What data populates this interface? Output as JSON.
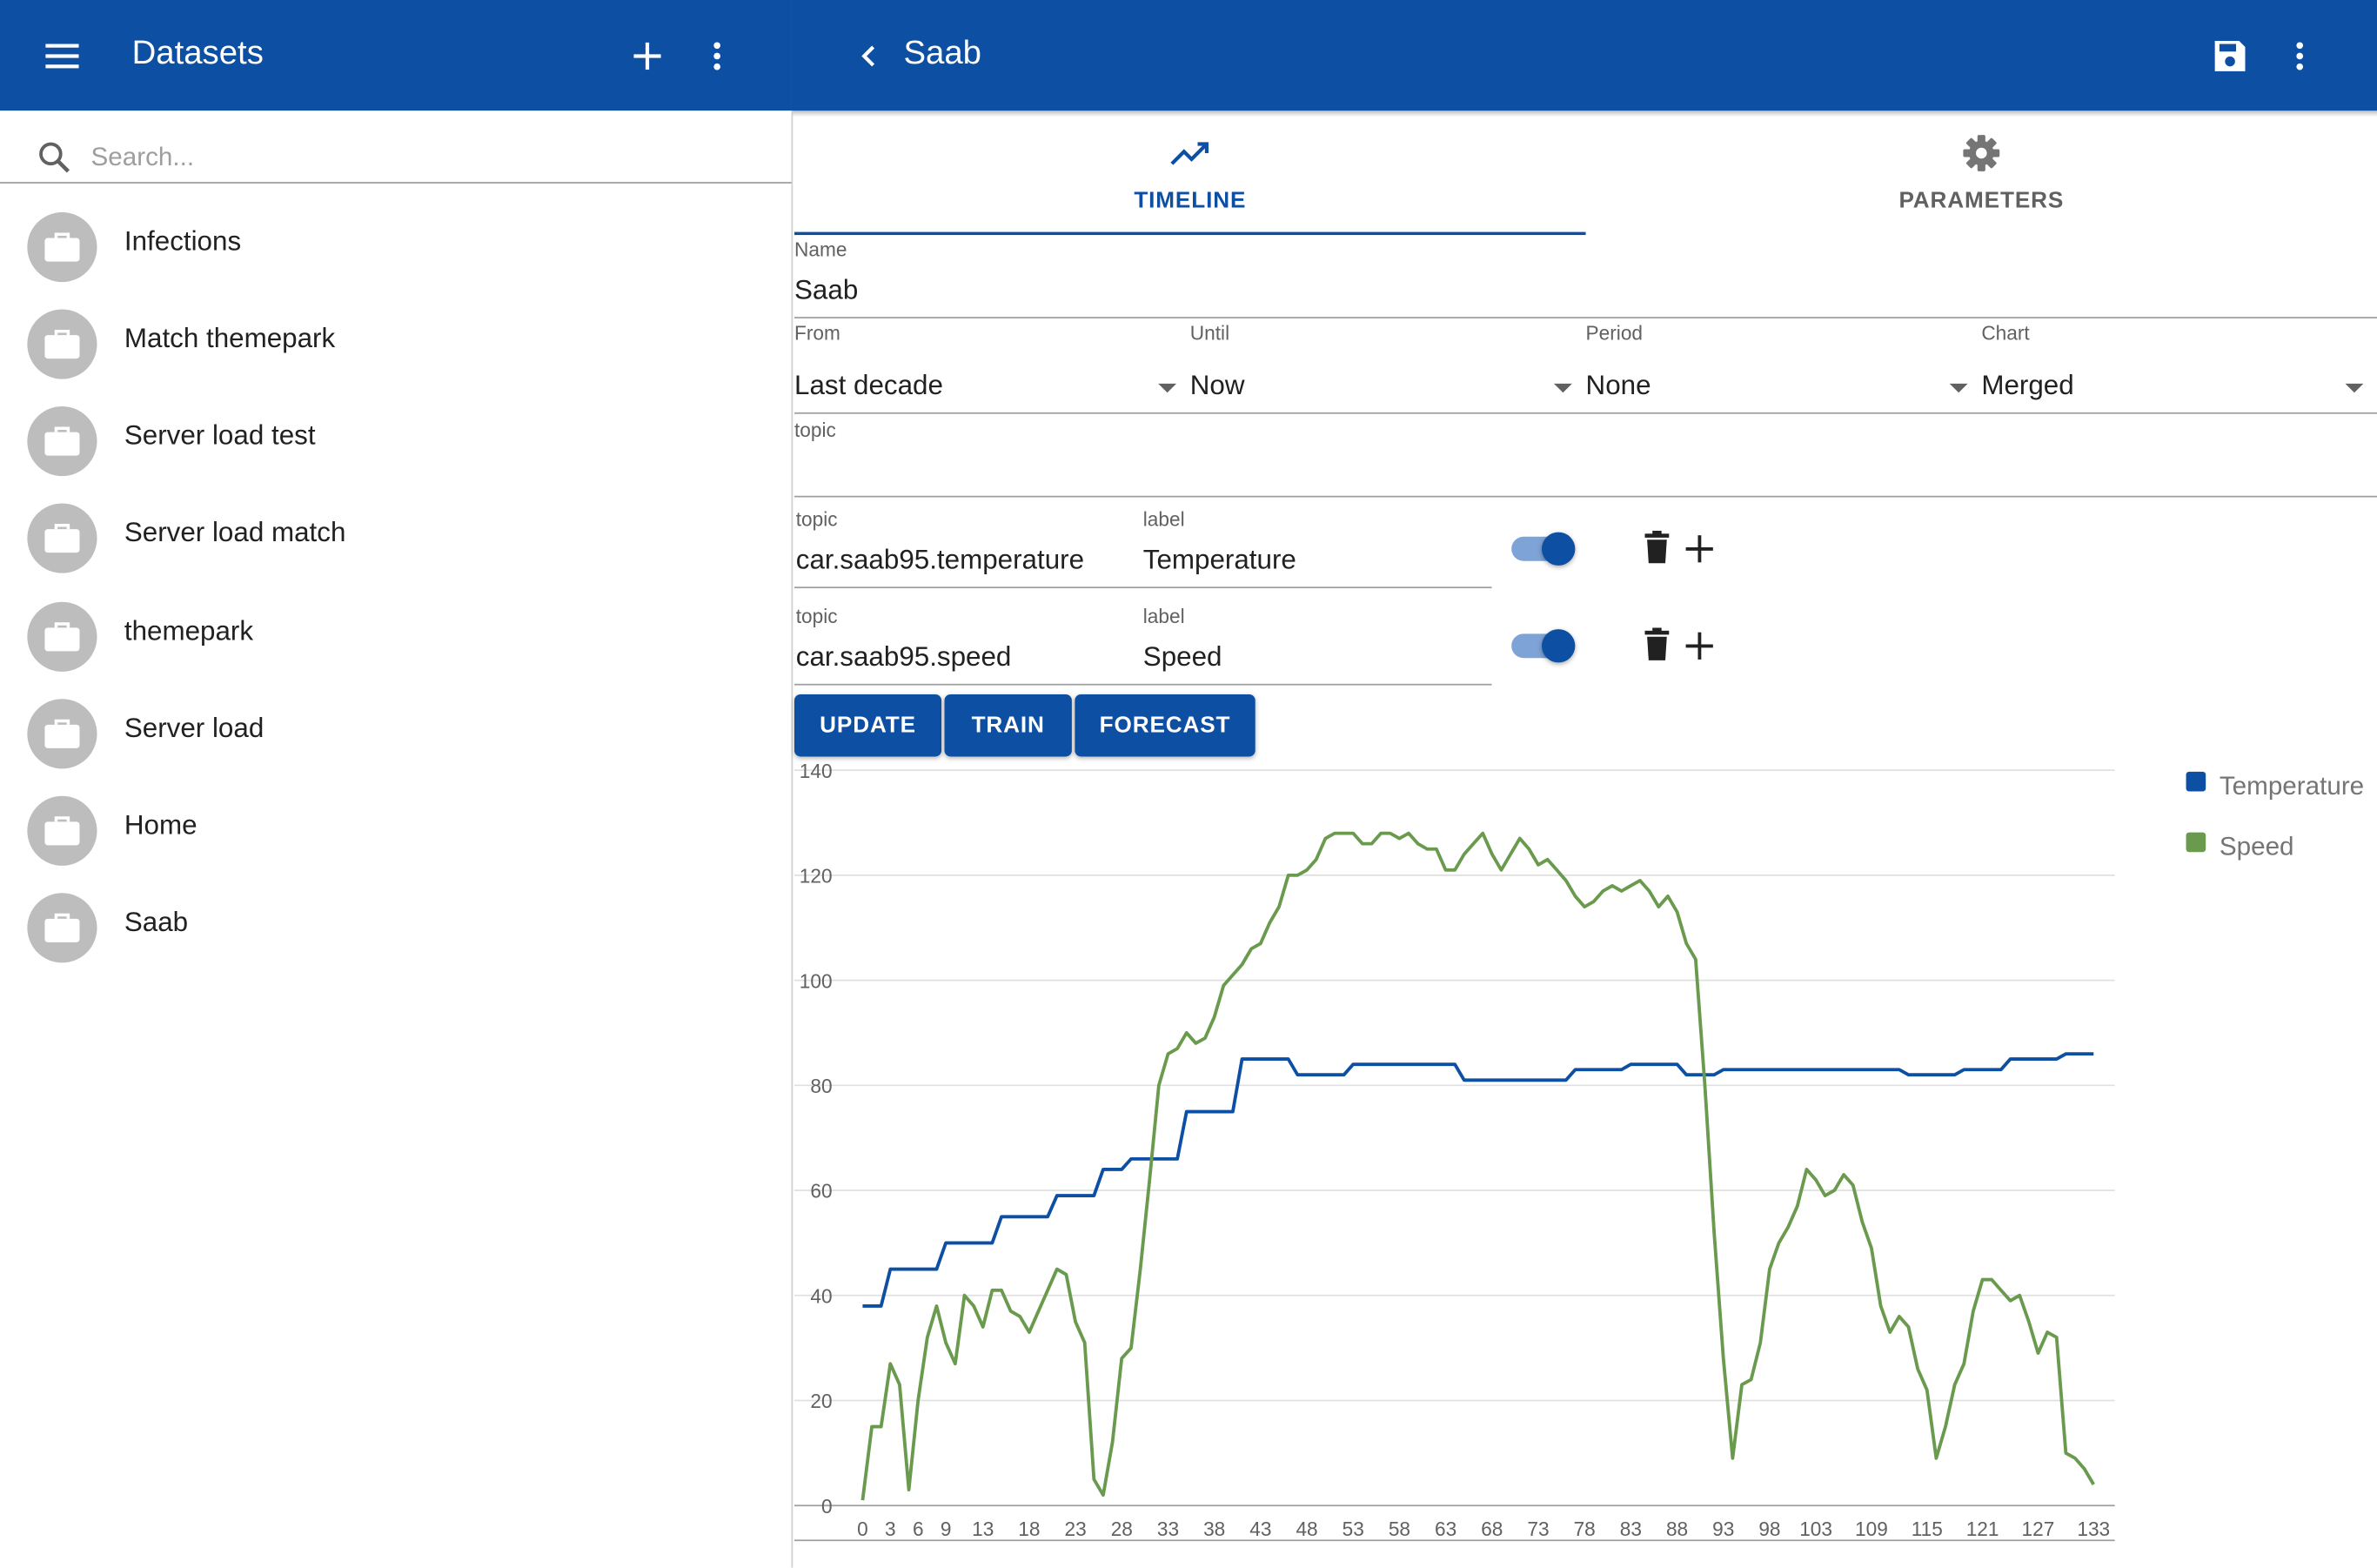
{
  "sidebar_header": {
    "title": "Datasets",
    "menu_icon": "menu-icon",
    "add_icon": "plus-icon",
    "more_icon": "more-vertical-icon"
  },
  "search": {
    "placeholder": "Search...",
    "value": ""
  },
  "datasets": [
    {
      "label": "Infections"
    },
    {
      "label": "Match themepark"
    },
    {
      "label": "Server load test"
    },
    {
      "label": "Server load match"
    },
    {
      "label": "themepark"
    },
    {
      "label": "Server load"
    },
    {
      "label": "Home"
    },
    {
      "label": "Saab"
    }
  ],
  "main_header": {
    "title": "Saab",
    "back_icon": "chevron-left-icon",
    "save_icon": "save-icon",
    "more_icon": "more-vertical-icon"
  },
  "tabs": [
    {
      "label": "TIMELINE",
      "icon": "trending-up-icon",
      "active": true
    },
    {
      "label": "PARAMETERS",
      "icon": "gear-icon",
      "active": false
    }
  ],
  "form": {
    "name": {
      "label": "Name",
      "value": "Saab"
    },
    "from": {
      "label": "From",
      "value": "Last decade"
    },
    "until": {
      "label": "Until",
      "value": "Now"
    },
    "period": {
      "label": "Period",
      "value": "None"
    },
    "chart": {
      "label": "Chart",
      "value": "Merged"
    },
    "topic": {
      "label": "topic",
      "value": ""
    }
  },
  "topics": [
    {
      "topic_label": "topic",
      "topic_value": "car.saab95.temperature",
      "label_label": "label",
      "label_value": "Temperature",
      "enabled": true
    },
    {
      "topic_label": "topic",
      "topic_value": "car.saab95.speed",
      "label_label": "label",
      "label_value": "Speed",
      "enabled": true
    }
  ],
  "buttons": {
    "update": "UPDATE",
    "train": "TRAIN",
    "forecast": "FORECAST"
  },
  "colors": {
    "primary": "#0d4fa3",
    "temperature": "#0d4fa3",
    "speed": "#6a9a4e"
  },
  "chart_data": {
    "type": "line",
    "x_tick_labels": [
      "0",
      "3",
      "6",
      "9",
      "13",
      "18",
      "23",
      "28",
      "33",
      "38",
      "43",
      "48",
      "53",
      "58",
      "63",
      "68",
      "73",
      "78",
      "83",
      "88",
      "93",
      "98",
      "103",
      "109",
      "115",
      "121",
      "127",
      "133"
    ],
    "x_range": [
      0,
      133
    ],
    "ylim": [
      0,
      140
    ],
    "y_ticks": [
      0,
      20,
      40,
      60,
      80,
      100,
      120,
      140
    ],
    "grid": true,
    "legend": "right",
    "series": [
      {
        "name": "Temperature",
        "color": "#0d4fa3",
        "points": [
          [
            0,
            38
          ],
          [
            2,
            38
          ],
          [
            3,
            45
          ],
          [
            8,
            45
          ],
          [
            9,
            50
          ],
          [
            14,
            50
          ],
          [
            15,
            55
          ],
          [
            20,
            55
          ],
          [
            21,
            59
          ],
          [
            25,
            59
          ],
          [
            26,
            64
          ],
          [
            28,
            64
          ],
          [
            29,
            66
          ],
          [
            34,
            66
          ],
          [
            35,
            75
          ],
          [
            40,
            75
          ],
          [
            41,
            85
          ],
          [
            46,
            85
          ],
          [
            47,
            82
          ],
          [
            52,
            82
          ],
          [
            53,
            84
          ],
          [
            64,
            84
          ],
          [
            65,
            81
          ],
          [
            76,
            81
          ],
          [
            77,
            83
          ],
          [
            82,
            83
          ],
          [
            83,
            84
          ],
          [
            88,
            84
          ],
          [
            89,
            82
          ],
          [
            92,
            82
          ],
          [
            93,
            83
          ],
          [
            112,
            83
          ],
          [
            113,
            82
          ],
          [
            118,
            82
          ],
          [
            119,
            83
          ],
          [
            123,
            83
          ],
          [
            124,
            85
          ],
          [
            129,
            85
          ],
          [
            130,
            86
          ],
          [
            133,
            86
          ]
        ]
      },
      {
        "name": "Speed",
        "color": "#6a9a4e",
        "points": [
          [
            0,
            1
          ],
          [
            1,
            15
          ],
          [
            2,
            15
          ],
          [
            3,
            27
          ],
          [
            4,
            23
          ],
          [
            5,
            3
          ],
          [
            6,
            20
          ],
          [
            7,
            32
          ],
          [
            8,
            38
          ],
          [
            9,
            31
          ],
          [
            10,
            27
          ],
          [
            11,
            40
          ],
          [
            12,
            38
          ],
          [
            13,
            34
          ],
          [
            14,
            41
          ],
          [
            15,
            41
          ],
          [
            16,
            37
          ],
          [
            17,
            36
          ],
          [
            18,
            33
          ],
          [
            19,
            37
          ],
          [
            20,
            41
          ],
          [
            21,
            45
          ],
          [
            22,
            44
          ],
          [
            23,
            35
          ],
          [
            24,
            31
          ],
          [
            25,
            5
          ],
          [
            26,
            2
          ],
          [
            27,
            12
          ],
          [
            28,
            28
          ],
          [
            29,
            30
          ],
          [
            30,
            45
          ],
          [
            31,
            62
          ],
          [
            32,
            80
          ],
          [
            33,
            86
          ],
          [
            34,
            87
          ],
          [
            35,
            90
          ],
          [
            36,
            88
          ],
          [
            37,
            89
          ],
          [
            38,
            93
          ],
          [
            39,
            99
          ],
          [
            40,
            101
          ],
          [
            41,
            103
          ],
          [
            42,
            106
          ],
          [
            43,
            107
          ],
          [
            44,
            111
          ],
          [
            45,
            114
          ],
          [
            46,
            120
          ],
          [
            47,
            120
          ],
          [
            48,
            121
          ],
          [
            49,
            123
          ],
          [
            50,
            127
          ],
          [
            51,
            128
          ],
          [
            52,
            128
          ],
          [
            53,
            128
          ],
          [
            54,
            126
          ],
          [
            55,
            126
          ],
          [
            56,
            128
          ],
          [
            57,
            128
          ],
          [
            58,
            127
          ],
          [
            59,
            128
          ],
          [
            60,
            126
          ],
          [
            61,
            125
          ],
          [
            62,
            125
          ],
          [
            63,
            121
          ],
          [
            64,
            121
          ],
          [
            65,
            124
          ],
          [
            66,
            126
          ],
          [
            67,
            128
          ],
          [
            68,
            124
          ],
          [
            69,
            121
          ],
          [
            70,
            124
          ],
          [
            71,
            127
          ],
          [
            72,
            125
          ],
          [
            73,
            122
          ],
          [
            74,
            123
          ],
          [
            75,
            121
          ],
          [
            76,
            119
          ],
          [
            77,
            116
          ],
          [
            78,
            114
          ],
          [
            79,
            115
          ],
          [
            80,
            117
          ],
          [
            81,
            118
          ],
          [
            82,
            117
          ],
          [
            83,
            118
          ],
          [
            84,
            119
          ],
          [
            85,
            117
          ],
          [
            86,
            114
          ],
          [
            87,
            116
          ],
          [
            88,
            113
          ],
          [
            89,
            107
          ],
          [
            90,
            104
          ],
          [
            91,
            80
          ],
          [
            92,
            52
          ],
          [
            93,
            28
          ],
          [
            94,
            9
          ],
          [
            95,
            23
          ],
          [
            96,
            24
          ],
          [
            97,
            31
          ],
          [
            98,
            45
          ],
          [
            99,
            50
          ],
          [
            100,
            53
          ],
          [
            101,
            57
          ],
          [
            102,
            64
          ],
          [
            103,
            62
          ],
          [
            104,
            59
          ],
          [
            105,
            60
          ],
          [
            106,
            63
          ],
          [
            107,
            61
          ],
          [
            108,
            54
          ],
          [
            109,
            49
          ],
          [
            110,
            38
          ],
          [
            111,
            33
          ],
          [
            112,
            36
          ],
          [
            113,
            34
          ],
          [
            114,
            26
          ],
          [
            115,
            22
          ],
          [
            116,
            9
          ],
          [
            117,
            15
          ],
          [
            118,
            23
          ],
          [
            119,
            27
          ],
          [
            120,
            37
          ],
          [
            121,
            43
          ],
          [
            122,
            43
          ],
          [
            123,
            41
          ],
          [
            124,
            39
          ],
          [
            125,
            40
          ],
          [
            126,
            35
          ],
          [
            127,
            29
          ],
          [
            128,
            33
          ],
          [
            129,
            32
          ],
          [
            130,
            10
          ],
          [
            131,
            9
          ],
          [
            132,
            7
          ],
          [
            133,
            4
          ]
        ]
      }
    ]
  }
}
